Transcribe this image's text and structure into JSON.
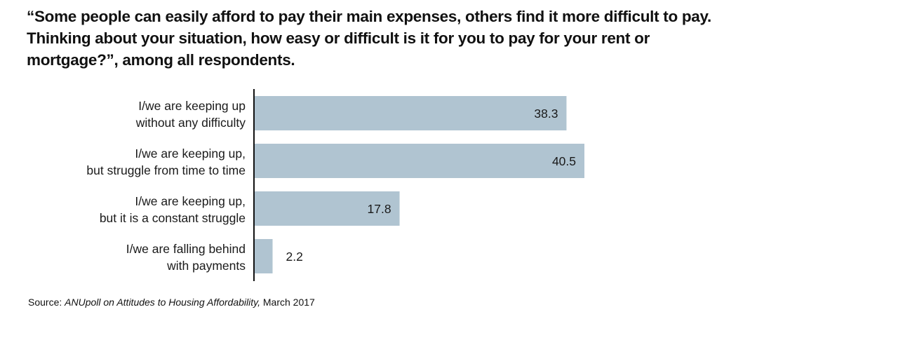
{
  "chart_data": {
    "type": "bar",
    "orientation": "horizontal",
    "title": "“Some people can easily afford to pay their main expenses, others find it more difficult to pay. Thinking about your situation, how easy or difficult is it for you to pay for your rent or mortgage?”, among all respondents.",
    "categories": [
      [
        "I/we are keeping up",
        "without any difficulty"
      ],
      [
        "I/we are keeping up,",
        "but struggle from time to time"
      ],
      [
        "I/we are keeping up,",
        "but it is a constant struggle"
      ],
      [
        "I/we are falling behind",
        "with payments"
      ]
    ],
    "values": [
      38.3,
      40.5,
      17.8,
      2.2
    ],
    "value_labels": [
      "38.3",
      "40.5",
      "17.8",
      "2.2"
    ],
    "xlabel": "",
    "ylabel": "",
    "xlim": [
      0,
      40.5
    ],
    "grid": false,
    "bar_color": "#b0c4d1",
    "axis_color": "#111111"
  },
  "source": {
    "prefix": "Source: ",
    "title": "ANUpoll on Attitudes to Housing Affordability,",
    "suffix": " March 2017"
  }
}
